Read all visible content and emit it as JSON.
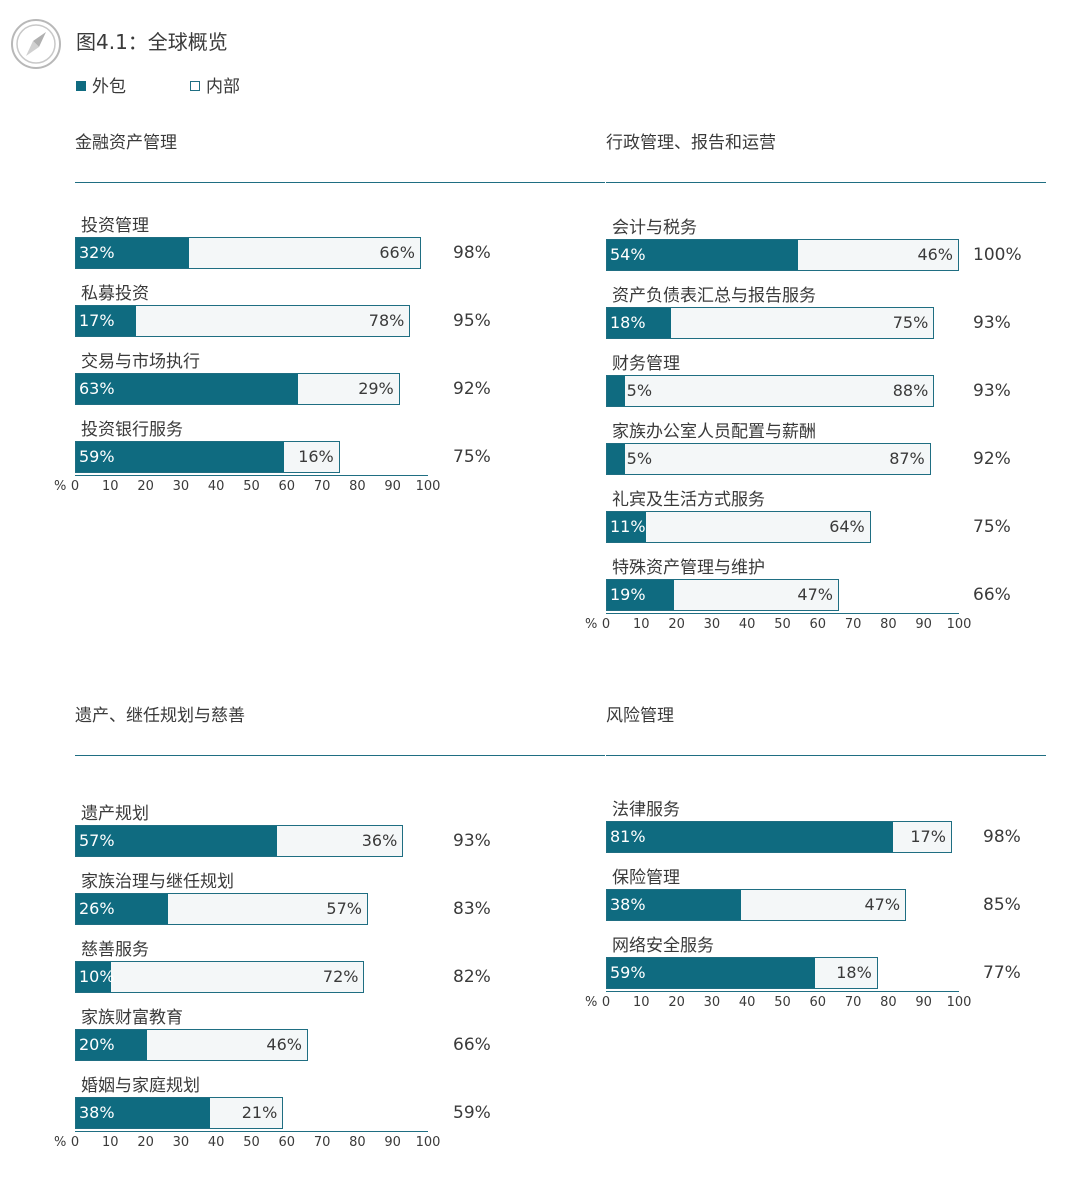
{
  "figure": {
    "title": "图4.1：全球概览"
  },
  "legend": [
    {
      "label": "外包",
      "style": "filled",
      "color": "#0f6b80"
    },
    {
      "label": "内部",
      "style": "outline",
      "color": "#1f6e82"
    }
  ],
  "colors": {
    "outsourced": "#0f6b80",
    "inhouse_fill": "#f4f7f8",
    "border": "#1f6e82"
  },
  "axis": {
    "unit": "%",
    "ticks": [
      "0",
      "10",
      "20",
      "30",
      "40",
      "50",
      "60",
      "70",
      "80",
      "90",
      "100"
    ]
  },
  "chart_data": [
    {
      "type": "bar",
      "orientation": "horizontal",
      "stacked": true,
      "title": "金融资产管理",
      "categories": [
        "投资管理",
        "私募投资",
        "交易与市场执行",
        "投资银行服务"
      ],
      "series": [
        {
          "name": "外包",
          "values": [
            32,
            17,
            63,
            59
          ],
          "labels": [
            "32%",
            "17%",
            "63%",
            "59%"
          ]
        },
        {
          "name": "内部",
          "values": [
            66,
            78,
            29,
            16
          ],
          "labels": [
            "66%",
            "78%",
            "29%",
            "16%"
          ]
        }
      ],
      "totals": [
        "98%",
        "95%",
        "92%",
        "75%"
      ],
      "xlim": [
        0,
        100
      ]
    },
    {
      "type": "bar",
      "orientation": "horizontal",
      "stacked": true,
      "title": "行政管理、报告和运营",
      "categories": [
        "会计与税务",
        "资产负债表汇总与报告服务",
        "财务管理",
        "家族办公室人员配置与薪酬",
        "礼宾及生活方式服务",
        "特殊资产管理与维护"
      ],
      "series": [
        {
          "name": "外包",
          "values": [
            54,
            18,
            5,
            5,
            11,
            19
          ],
          "labels": [
            "54%",
            "18%",
            "5%",
            "5%",
            "11%",
            "19%"
          ]
        },
        {
          "name": "内部",
          "values": [
            46,
            75,
            88,
            87,
            64,
            47
          ],
          "labels": [
            "46%",
            "75%",
            "88%",
            "87%",
            "64%",
            "47%"
          ]
        }
      ],
      "totals": [
        "100%",
        "93%",
        "93%",
        "92%",
        "75%",
        "66%"
      ],
      "xlim": [
        0,
        100
      ]
    },
    {
      "type": "bar",
      "orientation": "horizontal",
      "stacked": true,
      "title": "遗产、继任规划与慈善",
      "categories": [
        "遗产规划",
        "家族治理与继任规划",
        "慈善服务",
        "家族财富教育",
        "婚姻与家庭规划"
      ],
      "series": [
        {
          "name": "外包",
          "values": [
            57,
            26,
            10,
            20,
            38
          ],
          "labels": [
            "57%",
            "26%",
            "10%",
            "20%",
            "38%"
          ]
        },
        {
          "name": "内部",
          "values": [
            36,
            57,
            72,
            46,
            21
          ],
          "labels": [
            "36%",
            "57%",
            "72%",
            "46%",
            "21%"
          ]
        }
      ],
      "totals": [
        "93%",
        "83%",
        "82%",
        "66%",
        "59%"
      ],
      "xlim": [
        0,
        100
      ]
    },
    {
      "type": "bar",
      "orientation": "horizontal",
      "stacked": true,
      "title": "风险管理",
      "categories": [
        "法律服务",
        "保险管理",
        "网络安全服务"
      ],
      "series": [
        {
          "name": "外包",
          "values": [
            81,
            38,
            59
          ],
          "labels": [
            "81%",
            "38%",
            "59%"
          ]
        },
        {
          "name": "内部",
          "values": [
            17,
            47,
            18
          ],
          "labels": [
            "17%",
            "47%",
            "18%"
          ]
        }
      ],
      "totals": [
        "98%",
        "85%",
        "77%"
      ],
      "xlim": [
        0,
        100
      ]
    }
  ]
}
